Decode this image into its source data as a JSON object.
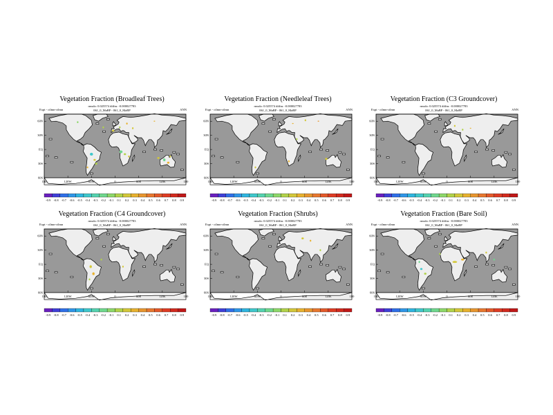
{
  "chart_data": [
    {
      "type": "heatmap",
      "title": "Vegetation Fraction (Broadleaf Trees)",
      "annotation_left": "Expt - ctlmn-ctlmn",
      "annotation_right": "ANN",
      "stats_line": "rmsdo: 0.025574  diffm: -0.000027783",
      "case_line": "061_0_MaBP - 061_0_MaBP",
      "xticks": [
        "180",
        "120W",
        "60W",
        "0",
        "60E",
        "120E",
        "180"
      ],
      "yticks": [
        "60N",
        "30N",
        "EQ",
        "30S",
        "60S"
      ],
      "colorbar_labels": [
        "-0.9",
        "-0.8",
        "-0.7",
        "-0.6",
        "-0.5",
        "-0.4",
        "-0.3",
        "-0.2",
        "-0.1",
        "0.1",
        "0.2",
        "0.3",
        "0.4",
        "0.5",
        "0.6",
        "0.7",
        "0.8",
        "0.9"
      ]
    },
    {
      "type": "heatmap",
      "title": "Vegetation Fraction (Needleleaf Trees)",
      "annotation_left": "Expt - ctlmn-ctlmn",
      "annotation_right": "ANN",
      "stats_line": "rmsdo: 0.025574  diffm: -0.000027783",
      "case_line": "061_0_MaBP - 061_0_MaBP",
      "xticks": [
        "180",
        "120W",
        "60W",
        "0",
        "60E",
        "120E",
        "180"
      ],
      "yticks": [
        "60N",
        "30N",
        "EQ",
        "30S",
        "60S"
      ],
      "colorbar_labels": [
        "-0.9",
        "-0.8",
        "-0.7",
        "-0.6",
        "-0.5",
        "-0.4",
        "-0.3",
        "-0.2",
        "-0.1",
        "0.1",
        "0.2",
        "0.3",
        "0.4",
        "0.5",
        "0.6",
        "0.7",
        "0.8",
        "0.9"
      ]
    },
    {
      "type": "heatmap",
      "title": "Vegetation Fraction (C3 Groundcover)",
      "annotation_left": "Expt - ctlmn-ctlmn",
      "annotation_right": "ANN",
      "stats_line": "rmsdo: 0.025574  diffm: -0.000027783",
      "case_line": "061_0_MaBP - 061_0_MaBP",
      "xticks": [
        "180",
        "120W",
        "60W",
        "0",
        "60E",
        "120E",
        "180"
      ],
      "yticks": [
        "60N",
        "30N",
        "EQ",
        "30S",
        "60S"
      ],
      "colorbar_labels": [
        "-0.9",
        "-0.8",
        "-0.7",
        "-0.6",
        "-0.5",
        "-0.4",
        "-0.3",
        "-0.2",
        "-0.1",
        "0.1",
        "0.2",
        "0.3",
        "0.4",
        "0.5",
        "0.6",
        "0.7",
        "0.8",
        "0.9"
      ]
    },
    {
      "type": "heatmap",
      "title": "Vegetation Fraction (C4 Groundcover)",
      "annotation_left": "Expt - ctlmn-ctlmn",
      "annotation_right": "ANN",
      "stats_line": "rmsdo: 0.025574  diffm: -0.000027783",
      "case_line": "061_0_MaBP - 061_0_MaBP",
      "xticks": [
        "180",
        "120W",
        "60W",
        "0",
        "60E",
        "120E",
        "180"
      ],
      "yticks": [
        "60N",
        "30N",
        "EQ",
        "30S",
        "60S"
      ],
      "colorbar_labels": [
        "-0.9",
        "-0.8",
        "-0.7",
        "-0.6",
        "-0.5",
        "-0.4",
        "-0.3",
        "-0.2",
        "-0.1",
        "0.1",
        "0.2",
        "0.3",
        "0.4",
        "0.5",
        "0.6",
        "0.7",
        "0.8",
        "0.9"
      ]
    },
    {
      "type": "heatmap",
      "title": "Vegetation Fraction (Shrubs)",
      "annotation_left": "Expt - ctlmn-ctlmn",
      "annotation_right": "ANN",
      "stats_line": "rmsdo: 0.025574  diffm: -0.000027783",
      "case_line": "061_0_MaBP - 061_0_MaBP",
      "xticks": [
        "180",
        "120W",
        "60W",
        "0",
        "60E",
        "120E",
        "180"
      ],
      "yticks": [
        "60N",
        "30N",
        "EQ",
        "30S",
        "60S"
      ],
      "colorbar_labels": [
        "-0.9",
        "-0.8",
        "-0.7",
        "-0.6",
        "-0.5",
        "-0.4",
        "-0.3",
        "-0.2",
        "-0.1",
        "0.1",
        "0.2",
        "0.3",
        "0.4",
        "0.5",
        "0.6",
        "0.7",
        "0.8",
        "0.9"
      ]
    },
    {
      "type": "heatmap",
      "title": "Vegetation Fraction (Bare Soil)",
      "annotation_left": "Expt - ctlmn-ctlmn",
      "annotation_right": "ANN",
      "stats_line": "rmsdo: 0.025574  diffm: -0.000027783",
      "case_line": "061_0_MaBP - 061_0_MaBP",
      "xticks": [
        "180",
        "120W",
        "60W",
        "0",
        "60E",
        "120E",
        "180"
      ],
      "yticks": [
        "60N",
        "30N",
        "EQ",
        "30S",
        "60S"
      ],
      "colorbar_labels": [
        "-0.9",
        "-0.8",
        "-0.7",
        "-0.6",
        "-0.5",
        "-0.4",
        "-0.3",
        "-0.2",
        "-0.1",
        "0.1",
        "0.2",
        "0.3",
        "0.4",
        "0.5",
        "0.6",
        "0.7",
        "0.8",
        "0.9"
      ]
    }
  ],
  "colors": {
    "ocean": "#999999",
    "land": "#eeeeee",
    "coast": "#000000",
    "scale": [
      "#6a1fbf",
      "#3f3fd8",
      "#2f6fe8",
      "#2f96e8",
      "#2fb6e0",
      "#3fc8cc",
      "#55d3b0",
      "#6fd88e",
      "#8ed86a",
      "#b2d34a",
      "#d3c83a",
      "#e8b22f",
      "#e8962f",
      "#e8782f",
      "#e45a2a",
      "#de3c24",
      "#d22a1e",
      "#c01818"
    ]
  }
}
